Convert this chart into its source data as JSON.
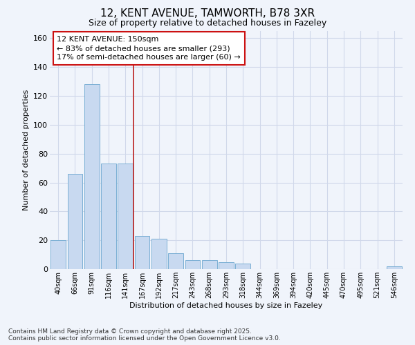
{
  "title1": "12, KENT AVENUE, TAMWORTH, B78 3XR",
  "title2": "Size of property relative to detached houses in Fazeley",
  "xlabel": "Distribution of detached houses by size in Fazeley",
  "ylabel": "Number of detached properties",
  "bar_labels": [
    "40sqm",
    "66sqm",
    "91sqm",
    "116sqm",
    "141sqm",
    "167sqm",
    "192sqm",
    "217sqm",
    "243sqm",
    "268sqm",
    "293sqm",
    "318sqm",
    "344sqm",
    "369sqm",
    "394sqm",
    "420sqm",
    "445sqm",
    "470sqm",
    "495sqm",
    "521sqm",
    "546sqm"
  ],
  "bar_values": [
    20,
    66,
    128,
    73,
    73,
    23,
    21,
    11,
    6,
    6,
    5,
    4,
    0,
    0,
    0,
    0,
    0,
    0,
    0,
    0,
    2
  ],
  "bar_color": "#c8d9f0",
  "bar_edge_color": "#7aafd4",
  "background_color": "#f0f4fb",
  "plot_bg_color": "#f0f4fb",
  "grid_color": "#d0d8ea",
  "vline_x": 4.5,
  "vline_color": "#bb2020",
  "annotation_text": "12 KENT AVENUE: 150sqm\n← 83% of detached houses are smaller (293)\n17% of semi-detached houses are larger (60) →",
  "annotation_box_facecolor": "#ffffff",
  "annotation_box_edgecolor": "#cc1111",
  "ylim": [
    0,
    165
  ],
  "yticks": [
    0,
    20,
    40,
    60,
    80,
    100,
    120,
    140,
    160
  ],
  "footer1": "Contains HM Land Registry data © Crown copyright and database right 2025.",
  "footer2": "Contains public sector information licensed under the Open Government Licence v3.0."
}
